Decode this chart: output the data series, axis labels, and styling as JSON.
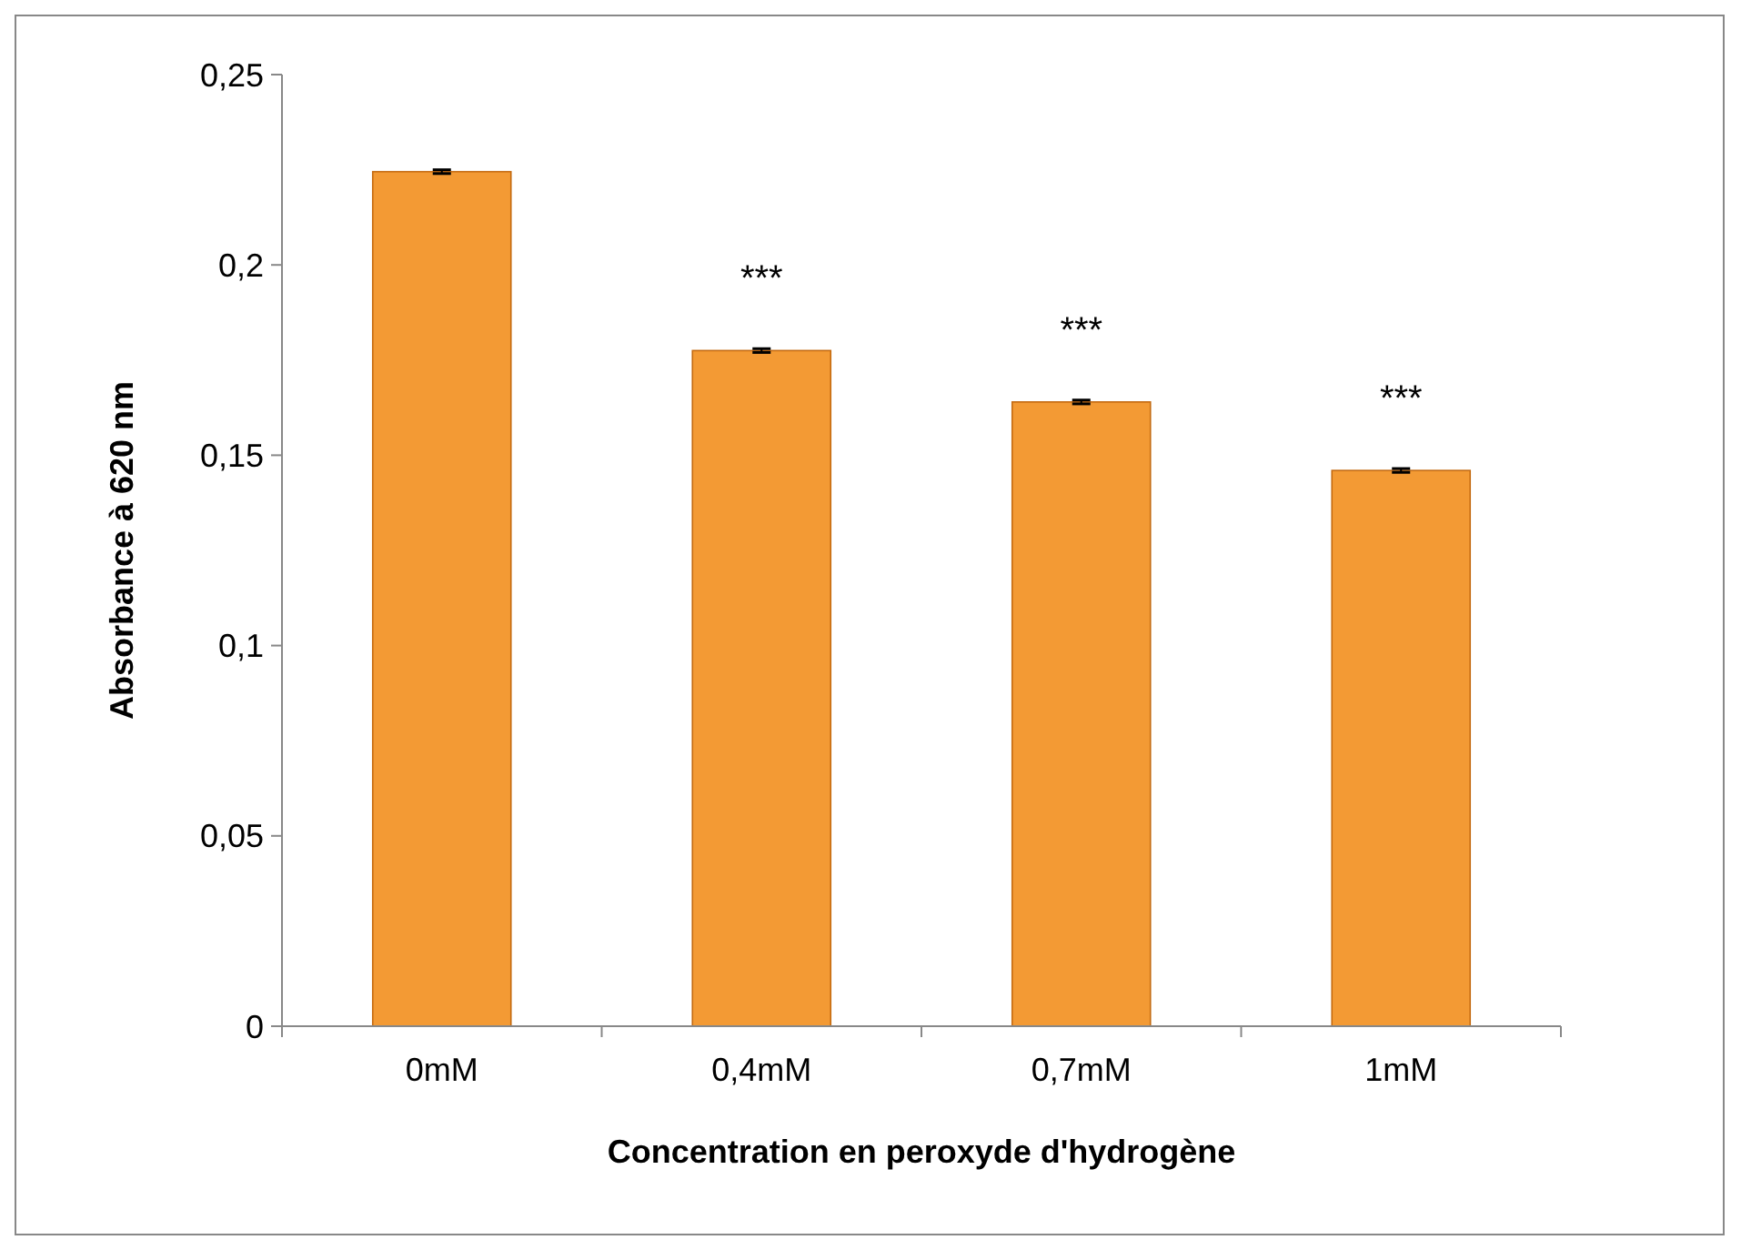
{
  "chart_data": {
    "type": "bar",
    "xlabel": "Concentration en peroxyde d'hydrogène",
    "ylabel": "Absorbance à 620 nm",
    "categories": [
      "0mM",
      "0,4mM",
      "0,7mM",
      "1mM"
    ],
    "values": [
      0.2245,
      0.1775,
      0.164,
      0.146
    ],
    "errors": [
      0.0005,
      0.0005,
      0.0005,
      0.0005
    ],
    "color": "#f39a34",
    "ylim": [
      0,
      0.25
    ],
    "yticks": [
      {
        "value": 0,
        "label": "0"
      },
      {
        "value": 0.05,
        "label": "0,05"
      },
      {
        "value": 0.1,
        "label": "0,1"
      },
      {
        "value": 0.15,
        "label": "0,15"
      },
      {
        "value": 0.2,
        "label": "0,2"
      },
      {
        "value": 0.25,
        "label": "0,25"
      }
    ],
    "annotations": [
      {
        "text": "***",
        "x": "0,4mM",
        "y": 0.1775
      },
      {
        "text": "***",
        "x": "0,7mM",
        "y": 0.164
      },
      {
        "text": "***",
        "x": "1mM",
        "y": 0.146
      }
    ],
    "grid": false
  }
}
